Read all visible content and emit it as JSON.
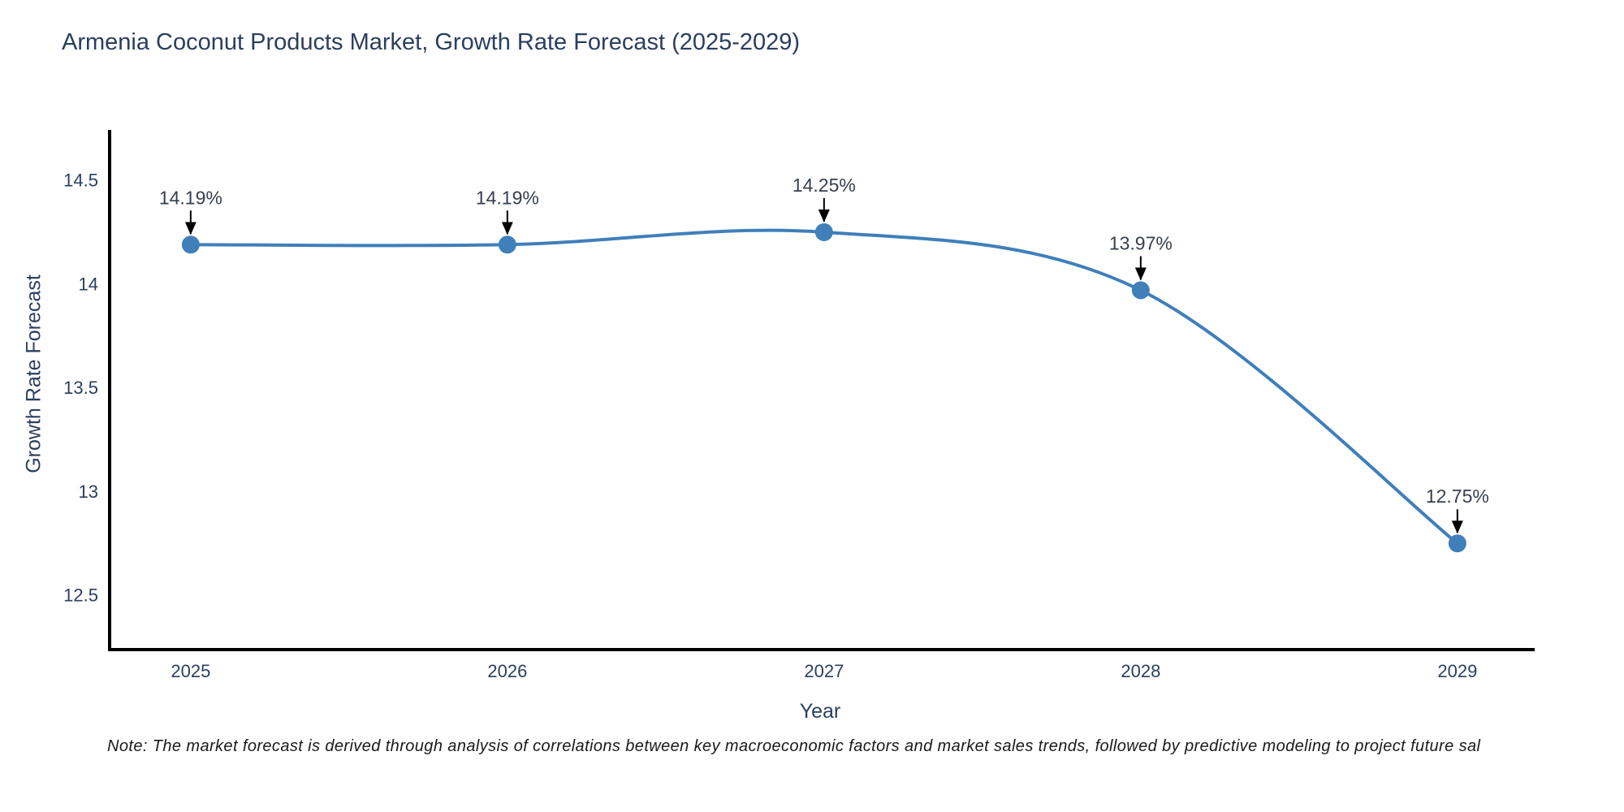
{
  "page": {
    "note": "Note: The market forecast is derived through analysis of correlations between key macroeconomic factors and market sales trends, followed by predictive modeling to project future sal"
  },
  "chart_data": {
    "type": "line",
    "title": "Armenia Coconut Products Market, Growth Rate Forecast (2025-2029)",
    "xlabel": "Year",
    "ylabel": "Growth Rate Forecast",
    "x": [
      2025,
      2026,
      2027,
      2028,
      2029
    ],
    "x_tick_labels": [
      "2025",
      "2026",
      "2027",
      "2028",
      "2029"
    ],
    "values": [
      14.19,
      14.19,
      14.25,
      13.97,
      12.75
    ],
    "point_labels": [
      "14.19%",
      "14.19%",
      "14.25%",
      "13.97%",
      "12.75%"
    ],
    "yticks": [
      12.5,
      13,
      13.5,
      14,
      14.5
    ],
    "ytick_labels": [
      "12.5",
      "13",
      "13.5",
      "14",
      "14.5"
    ],
    "xlim": [
      2024.744,
      2029.244
    ],
    "ylim": [
      12.238,
      14.743
    ],
    "grid": false,
    "legend": "none",
    "line_shape": "spline",
    "colors": {
      "line": "#3f7fba",
      "marker": "#3f7fba",
      "axis": "#000000",
      "tick_text": "#2a3f5f",
      "annotation_text": "#36404f",
      "annotation_arrow": "#000000"
    }
  }
}
